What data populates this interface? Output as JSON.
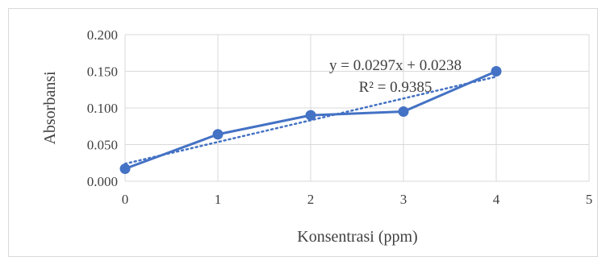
{
  "chart_data": {
    "type": "scatter",
    "title": "",
    "xlabel": "Konsentrasi (ppm)",
    "ylabel": "Absorbansi",
    "xlim": [
      0,
      5
    ],
    "ylim": [
      0,
      0.2
    ],
    "x_ticks": [
      "0",
      "1",
      "2",
      "3",
      "4",
      "5"
    ],
    "y_ticks": [
      "0.000",
      "0.050",
      "0.100",
      "0.150",
      "0.200"
    ],
    "grid": true,
    "series": [
      {
        "x": [
          0,
          1,
          2,
          3,
          4
        ],
        "y": [
          0.017,
          0.064,
          0.09,
          0.095,
          0.15
        ],
        "color": "#4472c4",
        "line": "solid",
        "marker": "circle"
      }
    ],
    "trendline": {
      "type": "linear",
      "slope": 0.0297,
      "intercept": 0.0238,
      "color": "#4472c4",
      "style": "dotted",
      "equation": "y = 0.0297x + 0.0238",
      "r2": "R² = 0.9385"
    }
  }
}
